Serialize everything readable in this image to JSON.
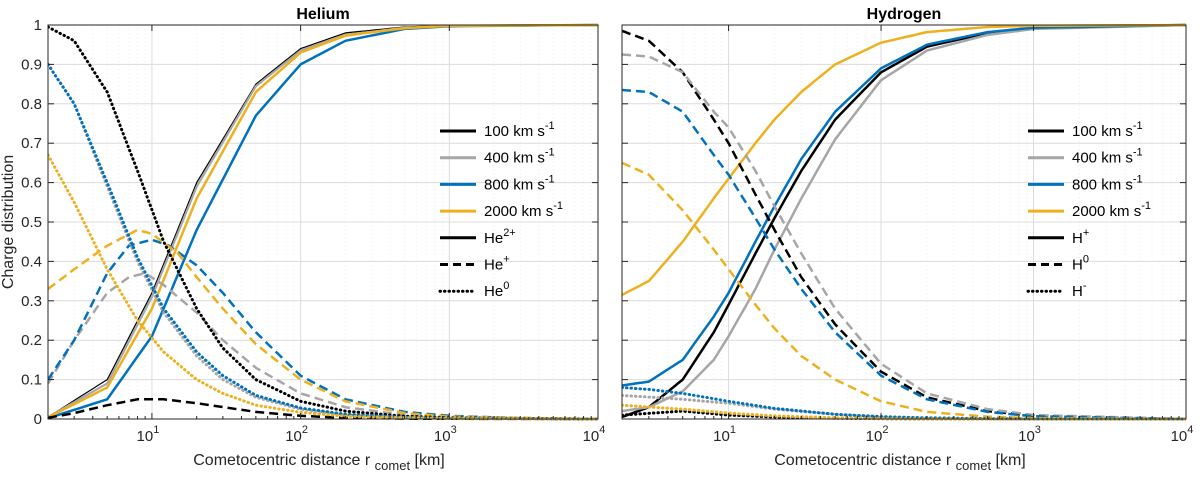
{
  "chart_data": [
    {
      "type": "line",
      "title": "Helium",
      "xlabel": "Cometocentric distance r",
      "xlabel_sub": "comet",
      "xlabel_unit": "[km]",
      "ylabel": "Charge distribution",
      "xscale": "log",
      "xlim": [
        2,
        10000
      ],
      "ylim": [
        0,
        1
      ],
      "xticks": [
        {
          "base": "10",
          "exp": "1",
          "value": 10
        },
        {
          "base": "10",
          "exp": "2",
          "value": 100
        },
        {
          "base": "10",
          "exp": "3",
          "value": 1000
        },
        {
          "base": "10",
          "exp": "4",
          "value": 10000
        }
      ],
      "yticks": [
        "0",
        "0.1",
        "0.2",
        "0.3",
        "0.4",
        "0.5",
        "0.6",
        "0.7",
        "0.8",
        "0.9",
        "1"
      ],
      "grid": true,
      "legend_position": "right",
      "legend": [
        {
          "text": "100 km s",
          "sup": "-1",
          "color": "#000000",
          "style": "solid"
        },
        {
          "text": "400 km s",
          "sup": "-1",
          "color": "#a6a6a6",
          "style": "solid"
        },
        {
          "text": "800 km s",
          "sup": "-1",
          "color": "#0072bd",
          "style": "solid"
        },
        {
          "text": "2000 km s",
          "sup": "-1",
          "color": "#edb120",
          "style": "solid"
        },
        {
          "text": "He",
          "sup": "2+",
          "color": "#000000",
          "style": "solid"
        },
        {
          "text": "He",
          "sup": "+",
          "color": "#000000",
          "style": "dashed"
        },
        {
          "text": "He",
          "sup": "0",
          "color": "#000000",
          "style": "dotted"
        }
      ],
      "series": [
        {
          "name": "He2+ 100",
          "color": "#000000",
          "style": "solid",
          "width": 1.2,
          "x": [
            2,
            5,
            10,
            20,
            50,
            100,
            200,
            500,
            1000,
            10000
          ],
          "y": [
            0.005,
            0.1,
            0.32,
            0.6,
            0.85,
            0.94,
            0.98,
            0.995,
            0.999,
            1
          ]
        },
        {
          "name": "He2+ 400",
          "color": "#a6a6a6",
          "style": "solid",
          "width": 2.2,
          "x": [
            2,
            5,
            10,
            20,
            50,
            100,
            200,
            500,
            1000,
            10000
          ],
          "y": [
            0.005,
            0.09,
            0.31,
            0.59,
            0.845,
            0.935,
            0.975,
            0.993,
            0.998,
            1
          ]
        },
        {
          "name": "He2+ 800",
          "color": "#0072bd",
          "style": "solid",
          "width": 2.5,
          "x": [
            2,
            5,
            10,
            20,
            50,
            100,
            200,
            500,
            1000,
            10000
          ],
          "y": [
            0.002,
            0.05,
            0.21,
            0.48,
            0.77,
            0.9,
            0.96,
            0.99,
            0.997,
            1
          ]
        },
        {
          "name": "He2+ 2000",
          "color": "#edb120",
          "style": "solid",
          "width": 2.5,
          "x": [
            2,
            5,
            10,
            20,
            50,
            100,
            200,
            500,
            1000,
            10000
          ],
          "y": [
            0.004,
            0.08,
            0.28,
            0.56,
            0.83,
            0.93,
            0.973,
            0.992,
            0.998,
            1
          ]
        },
        {
          "name": "He+ 100",
          "color": "#000000",
          "style": "dashed",
          "width": 2.5,
          "x": [
            2,
            3,
            5,
            8,
            12,
            20,
            50,
            100,
            200,
            500,
            1000,
            10000
          ],
          "y": [
            0.003,
            0.015,
            0.035,
            0.05,
            0.05,
            0.04,
            0.018,
            0.008,
            0.003,
            0.001,
            0.0005,
            0
          ]
        },
        {
          "name": "He+ 400",
          "color": "#a6a6a6",
          "style": "dashed",
          "width": 2.5,
          "x": [
            2,
            3,
            5,
            7,
            9,
            12,
            20,
            30,
            50,
            100,
            200,
            500,
            1000,
            10000
          ],
          "y": [
            0.09,
            0.2,
            0.32,
            0.36,
            0.37,
            0.34,
            0.27,
            0.2,
            0.13,
            0.065,
            0.03,
            0.01,
            0.004,
            0
          ]
        },
        {
          "name": "He+ 800",
          "color": "#0072bd",
          "style": "dashed",
          "width": 2.5,
          "x": [
            2,
            3,
            5,
            7,
            10,
            13,
            20,
            30,
            50,
            100,
            200,
            500,
            1000,
            3000,
            10000
          ],
          "y": [
            0.1,
            0.2,
            0.37,
            0.44,
            0.455,
            0.44,
            0.39,
            0.32,
            0.22,
            0.11,
            0.05,
            0.018,
            0.008,
            0.002,
            0
          ]
        },
        {
          "name": "He+ 2000",
          "color": "#edb120",
          "style": "dashed",
          "width": 2.5,
          "x": [
            2,
            3,
            5,
            8,
            10,
            15,
            20,
            30,
            50,
            100,
            200,
            500,
            1000,
            10000
          ],
          "y": [
            0.33,
            0.38,
            0.44,
            0.48,
            0.47,
            0.42,
            0.36,
            0.28,
            0.19,
            0.1,
            0.045,
            0.015,
            0.006,
            0
          ]
        },
        {
          "name": "He0 100",
          "color": "#000000",
          "style": "dotted",
          "width": 3,
          "x": [
            2,
            3,
            5,
            8,
            12,
            20,
            30,
            50,
            100,
            200,
            500,
            1000,
            10000
          ],
          "y": [
            0.995,
            0.96,
            0.83,
            0.63,
            0.45,
            0.28,
            0.18,
            0.1,
            0.045,
            0.02,
            0.007,
            0.003,
            0
          ]
        },
        {
          "name": "He0 400",
          "color": "#a6a6a6",
          "style": "dotted",
          "width": 3,
          "x": [
            2,
            3,
            5,
            8,
            12,
            20,
            30,
            50,
            100,
            200,
            500,
            1000,
            10000
          ],
          "y": [
            0.9,
            0.8,
            0.59,
            0.4,
            0.27,
            0.16,
            0.1,
            0.055,
            0.025,
            0.01,
            0.004,
            0.002,
            0
          ]
        },
        {
          "name": "He0 800",
          "color": "#0072bd",
          "style": "dotted",
          "width": 3,
          "x": [
            2,
            3,
            5,
            8,
            12,
            20,
            30,
            50,
            100,
            200,
            500,
            1000,
            10000
          ],
          "y": [
            0.9,
            0.8,
            0.6,
            0.41,
            0.28,
            0.17,
            0.11,
            0.06,
            0.028,
            0.012,
            0.004,
            0.002,
            0
          ]
        },
        {
          "name": "He0 2000",
          "color": "#edb120",
          "style": "dotted",
          "width": 3,
          "x": [
            2,
            3,
            5,
            8,
            12,
            20,
            30,
            50,
            100,
            200,
            500,
            1000,
            10000
          ],
          "y": [
            0.67,
            0.55,
            0.38,
            0.25,
            0.17,
            0.1,
            0.065,
            0.035,
            0.017,
            0.007,
            0.003,
            0.001,
            0
          ]
        }
      ]
    },
    {
      "type": "line",
      "title": "Hydrogen",
      "xlabel": "Cometocentric distance r",
      "xlabel_sub": "comet",
      "xlabel_unit": "[km]",
      "ylabel": "",
      "xscale": "log",
      "xlim": [
        2,
        10000
      ],
      "ylim": [
        0,
        1
      ],
      "xticks": [
        {
          "base": "10",
          "exp": "1",
          "value": 10
        },
        {
          "base": "10",
          "exp": "2",
          "value": 100
        },
        {
          "base": "10",
          "exp": "3",
          "value": 1000
        },
        {
          "base": "10",
          "exp": "4",
          "value": 10000
        }
      ],
      "yticks": [],
      "grid": true,
      "legend_position": "right",
      "legend": [
        {
          "text": "100 km s",
          "sup": "-1",
          "color": "#000000",
          "style": "solid"
        },
        {
          "text": "400 km s",
          "sup": "-1",
          "color": "#a6a6a6",
          "style": "solid"
        },
        {
          "text": "800 km s",
          "sup": "-1",
          "color": "#0072bd",
          "style": "solid"
        },
        {
          "text": "2000 km s",
          "sup": "-1",
          "color": "#edb120",
          "style": "solid"
        },
        {
          "text": "H",
          "sup": "+",
          "color": "#000000",
          "style": "solid"
        },
        {
          "text": "H",
          "sup": "0",
          "color": "#000000",
          "style": "dashed"
        },
        {
          "text": "H",
          "sup": "-",
          "color": "#000000",
          "style": "dotted"
        }
      ],
      "series": [
        {
          "name": "H+ 100",
          "color": "#000000",
          "style": "solid",
          "width": 2.5,
          "x": [
            2,
            3,
            5,
            8,
            10,
            15,
            20,
            30,
            50,
            100,
            200,
            500,
            1000,
            10000
          ],
          "y": [
            0.005,
            0.03,
            0.1,
            0.22,
            0.29,
            0.42,
            0.51,
            0.63,
            0.76,
            0.88,
            0.945,
            0.98,
            0.992,
            1
          ]
        },
        {
          "name": "H+ 400",
          "color": "#a6a6a6",
          "style": "solid",
          "width": 2.5,
          "x": [
            2,
            3,
            5,
            8,
            10,
            15,
            20,
            30,
            50,
            100,
            200,
            500,
            1000,
            10000
          ],
          "y": [
            0.02,
            0.03,
            0.07,
            0.15,
            0.21,
            0.33,
            0.43,
            0.56,
            0.71,
            0.86,
            0.935,
            0.975,
            0.99,
            1
          ]
        },
        {
          "name": "H+ 800",
          "color": "#0072bd",
          "style": "solid",
          "width": 2.5,
          "x": [
            2,
            3,
            5,
            8,
            10,
            15,
            20,
            30,
            50,
            100,
            200,
            500,
            1000,
            10000
          ],
          "y": [
            0.085,
            0.095,
            0.15,
            0.26,
            0.32,
            0.45,
            0.54,
            0.66,
            0.78,
            0.89,
            0.95,
            0.982,
            0.993,
            1
          ]
        },
        {
          "name": "H+ 2000",
          "color": "#edb120",
          "style": "solid",
          "width": 2.5,
          "x": [
            2,
            3,
            5,
            8,
            10,
            15,
            20,
            30,
            50,
            100,
            200,
            500,
            1000,
            10000
          ],
          "y": [
            0.315,
            0.35,
            0.45,
            0.56,
            0.61,
            0.7,
            0.76,
            0.83,
            0.9,
            0.955,
            0.982,
            0.995,
            0.998,
            1
          ]
        },
        {
          "name": "H0 100",
          "color": "#000000",
          "style": "dashed",
          "width": 2.5,
          "x": [
            2,
            3,
            5,
            8,
            10,
            15,
            20,
            30,
            50,
            100,
            200,
            500,
            1000,
            10000
          ],
          "y": [
            0.985,
            0.96,
            0.88,
            0.76,
            0.7,
            0.57,
            0.48,
            0.36,
            0.24,
            0.12,
            0.055,
            0.02,
            0.008,
            0
          ]
        },
        {
          "name": "H0 400",
          "color": "#a6a6a6",
          "style": "dashed",
          "width": 2.5,
          "x": [
            2,
            3,
            5,
            8,
            10,
            15,
            20,
            30,
            50,
            100,
            200,
            500,
            1000,
            10000
          ],
          "y": [
            0.925,
            0.92,
            0.88,
            0.78,
            0.74,
            0.63,
            0.54,
            0.42,
            0.28,
            0.14,
            0.065,
            0.025,
            0.01,
            0
          ]
        },
        {
          "name": "H0 800",
          "color": "#0072bd",
          "style": "dashed",
          "width": 2.5,
          "x": [
            2,
            3,
            5,
            8,
            10,
            15,
            20,
            30,
            50,
            100,
            200,
            500,
            1000,
            10000
          ],
          "y": [
            0.835,
            0.83,
            0.78,
            0.67,
            0.62,
            0.51,
            0.43,
            0.33,
            0.22,
            0.11,
            0.05,
            0.018,
            0.007,
            0
          ]
        },
        {
          "name": "H0 2000",
          "color": "#edb120",
          "style": "dashed",
          "width": 2.5,
          "x": [
            2,
            3,
            5,
            8,
            10,
            15,
            20,
            30,
            50,
            100,
            200,
            500,
            1000,
            10000
          ],
          "y": [
            0.65,
            0.62,
            0.53,
            0.43,
            0.38,
            0.29,
            0.23,
            0.16,
            0.1,
            0.045,
            0.018,
            0.006,
            0.002,
            0
          ]
        },
        {
          "name": "H- 100",
          "color": "#000000",
          "style": "dotted",
          "width": 3,
          "x": [
            2,
            5,
            10,
            20,
            50,
            100,
            200,
            1000,
            10000
          ],
          "y": [
            0.01,
            0.02,
            0.01,
            0.005,
            0.002,
            0.001,
            0,
            0,
            0
          ]
        },
        {
          "name": "H- 400",
          "color": "#a6a6a6",
          "style": "dotted",
          "width": 3,
          "x": [
            2,
            5,
            10,
            20,
            50,
            100,
            200,
            500,
            1000,
            10000
          ],
          "y": [
            0.06,
            0.05,
            0.04,
            0.025,
            0.012,
            0.005,
            0.002,
            0.001,
            0,
            0
          ]
        },
        {
          "name": "H- 800",
          "color": "#0072bd",
          "style": "dotted",
          "width": 3,
          "x": [
            2,
            3,
            5,
            10,
            20,
            50,
            100,
            200,
            500,
            1000,
            10000
          ],
          "y": [
            0.08,
            0.075,
            0.065,
            0.045,
            0.027,
            0.012,
            0.006,
            0.003,
            0.001,
            0,
            0
          ]
        },
        {
          "name": "H- 2000",
          "color": "#edb120",
          "style": "dotted",
          "width": 3,
          "x": [
            2,
            5,
            10,
            20,
            50,
            100,
            200,
            1000,
            10000
          ],
          "y": [
            0.035,
            0.025,
            0.015,
            0.008,
            0.003,
            0.001,
            0,
            0,
            0
          ]
        }
      ]
    }
  ]
}
